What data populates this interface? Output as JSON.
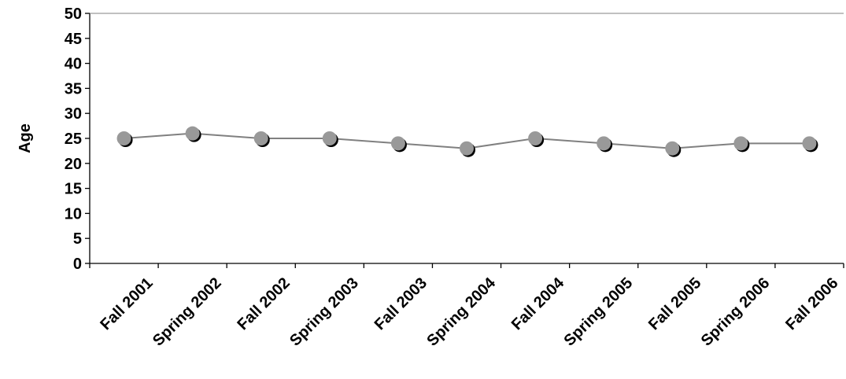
{
  "chart_data": {
    "type": "line",
    "title": "",
    "xlabel": "",
    "ylabel": "Age",
    "categories": [
      "Fall 2001",
      "Spring 2002",
      "Fall 2002",
      "Spring 2003",
      "Fall 2003",
      "Spring 2004",
      "Fall 2004",
      "Spring 2005",
      "Fall 2005",
      "Spring 2006",
      "Fall 2006"
    ],
    "series": [
      {
        "values": [
          25,
          26,
          25,
          25,
          24,
          23,
          25,
          24,
          23,
          24,
          24
        ]
      }
    ],
    "ylim": [
      0,
      50
    ],
    "yticks": [
      "0",
      "5",
      "10",
      "15",
      "20",
      "25",
      "30",
      "35",
      "40",
      "45",
      "50"
    ],
    "grid": false,
    "legend": "none",
    "colors": {
      "line": "#808080",
      "marker": "#999999",
      "marker_shadow": "#000000"
    }
  }
}
